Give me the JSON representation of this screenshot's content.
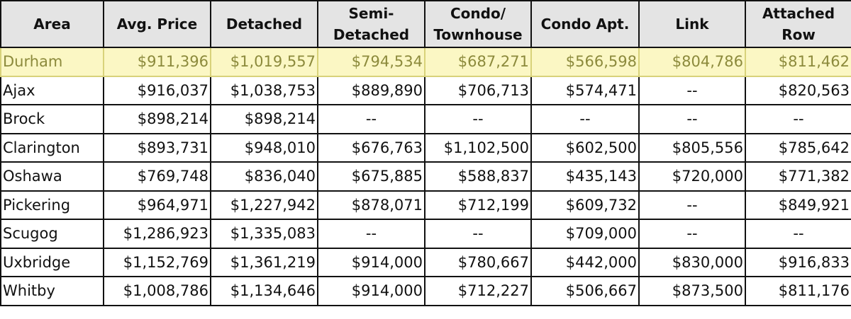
{
  "table": {
    "header": [
      "Area",
      "Avg. Price",
      "Detached",
      "Semi-\nDetached",
      "Condo/\nTownhouse",
      "Condo Apt.",
      "Link",
      "Attached\nRow"
    ],
    "rows": [
      [
        "Durham",
        "$911,396",
        "$1,019,557",
        "$794,534",
        "$687,271",
        "$566,598",
        "$804,786",
        "$811,462"
      ],
      [
        "Ajax",
        "$916,037",
        "$1,038,753",
        "$889,890",
        "$706,713",
        "$574,471",
        "--",
        "$820,563"
      ],
      [
        "Brock",
        "$898,214",
        "$898,214",
        "--",
        "--",
        "--",
        "--",
        "--"
      ],
      [
        "Clarington",
        "$893,731",
        "$948,010",
        "$676,763",
        "$1,102,500",
        "$602,500",
        "$805,556",
        "$785,642"
      ],
      [
        "Oshawa",
        "$769,748",
        "$836,040",
        "$675,885",
        "$588,837",
        "$435,143",
        "$720,000",
        "$771,382"
      ],
      [
        "Pickering",
        "$964,971",
        "$1,227,942",
        "$878,071",
        "$712,199",
        "$609,732",
        "--",
        "$849,921"
      ],
      [
        "Scugog",
        "$1,286,923",
        "$1,335,083",
        "--",
        "--",
        "$709,000",
        "--",
        "--"
      ],
      [
        "Uxbridge",
        "$1,152,769",
        "$1,361,219",
        "$914,000",
        "$780,667",
        "$442,000",
        "$830,000",
        "$916,833"
      ],
      [
        "Whitby",
        "$1,008,786",
        "$1,134,646",
        "$914,000",
        "$712,227",
        "$506,667",
        "$873,500",
        "$811,176"
      ]
    ]
  }
}
